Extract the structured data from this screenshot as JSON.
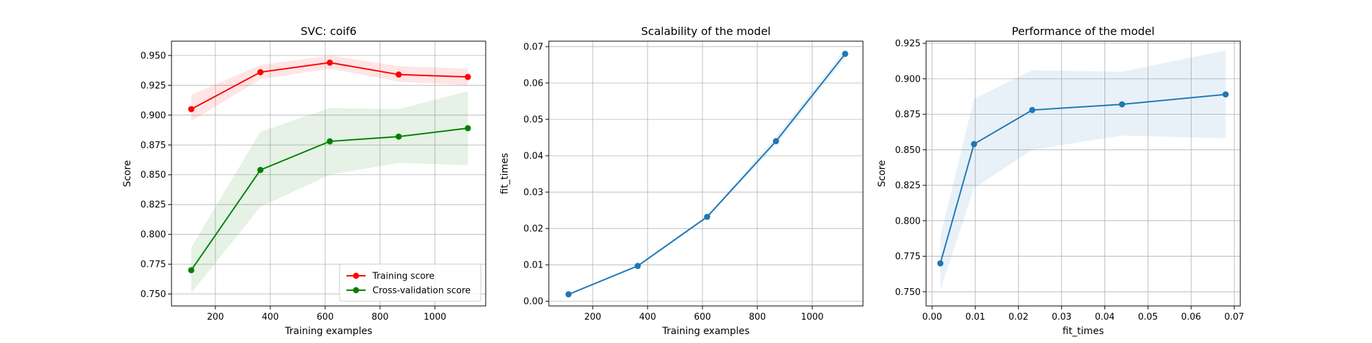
{
  "chart_data": [
    {
      "type": "line",
      "title": "SVC: coif6",
      "xlabel": "Training examples",
      "ylabel": "Score",
      "xlim": [
        40,
        1185
      ],
      "ylim": [
        0.74,
        0.962
      ],
      "xticks": [
        200,
        400,
        600,
        800,
        1000
      ],
      "yticks": [
        0.75,
        0.775,
        0.8,
        0.825,
        0.85,
        0.875,
        0.9,
        0.925,
        0.95
      ],
      "ytick_labels": [
        "0.750",
        "0.775",
        "0.800",
        "0.825",
        "0.850",
        "0.875",
        "0.900",
        "0.925",
        "0.950"
      ],
      "grid": true,
      "legend_position": "lower-right",
      "x": [
        112,
        364,
        617,
        868,
        1120
      ],
      "series": [
        {
          "name": "Training score",
          "color": "#ff0000",
          "values": [
            0.905,
            0.936,
            0.944,
            0.934,
            0.932
          ],
          "lower": [
            0.895,
            0.93,
            0.939,
            0.928,
            0.925
          ],
          "upper": [
            0.917,
            0.942,
            0.95,
            0.941,
            0.939
          ]
        },
        {
          "name": "Cross-validation score",
          "color": "#008000",
          "values": [
            0.77,
            0.854,
            0.878,
            0.882,
            0.889
          ],
          "lower": [
            0.751,
            0.823,
            0.85,
            0.86,
            0.858
          ],
          "upper": [
            0.789,
            0.886,
            0.906,
            0.905,
            0.92
          ]
        }
      ]
    },
    {
      "type": "line",
      "title": "Scalability of the model",
      "xlabel": "Training examples",
      "ylabel": "fit_times",
      "xlim": [
        40,
        1185
      ],
      "ylim": [
        -0.0013,
        0.0715
      ],
      "xticks": [
        200,
        400,
        600,
        800,
        1000
      ],
      "yticks": [
        0.0,
        0.01,
        0.02,
        0.03,
        0.04,
        0.05,
        0.06,
        0.07
      ],
      "ytick_labels": [
        "0.00",
        "0.01",
        "0.02",
        "0.03",
        "0.04",
        "0.05",
        "0.06",
        "0.07"
      ],
      "grid": true,
      "x": [
        112,
        364,
        617,
        868,
        1120
      ],
      "series": [
        {
          "color": "#1f77b4",
          "values": [
            0.0019,
            0.0097,
            0.0232,
            0.044,
            0.068
          ],
          "lower": [
            0.0017,
            0.0094,
            0.0228,
            0.043,
            0.0668
          ],
          "upper": [
            0.0021,
            0.01,
            0.0236,
            0.0452,
            0.0692
          ]
        }
      ]
    },
    {
      "type": "line",
      "title": "Performance of the model",
      "xlabel": "fit_times",
      "ylabel": "Score",
      "xlim": [
        -0.0014,
        0.0714
      ],
      "ylim": [
        0.74,
        0.9265
      ],
      "xticks": [
        0.0,
        0.01,
        0.02,
        0.03,
        0.04,
        0.05,
        0.06,
        0.07
      ],
      "xtick_labels": [
        "0.00",
        "0.01",
        "0.02",
        "0.03",
        "0.04",
        "0.05",
        "0.06",
        "0.07"
      ],
      "yticks": [
        0.75,
        0.775,
        0.8,
        0.825,
        0.85,
        0.875,
        0.9,
        0.925
      ],
      "ytick_labels": [
        "0.750",
        "0.775",
        "0.800",
        "0.825",
        "0.850",
        "0.875",
        "0.900",
        "0.925"
      ],
      "grid": true,
      "x": [
        0.0019,
        0.0097,
        0.0232,
        0.044,
        0.068
      ],
      "series": [
        {
          "color": "#1f77b4",
          "values": [
            0.77,
            0.854,
            0.878,
            0.882,
            0.889
          ],
          "lower": [
            0.751,
            0.823,
            0.85,
            0.86,
            0.858
          ],
          "upper": [
            0.789,
            0.886,
            0.906,
            0.905,
            0.92
          ]
        }
      ]
    }
  ]
}
